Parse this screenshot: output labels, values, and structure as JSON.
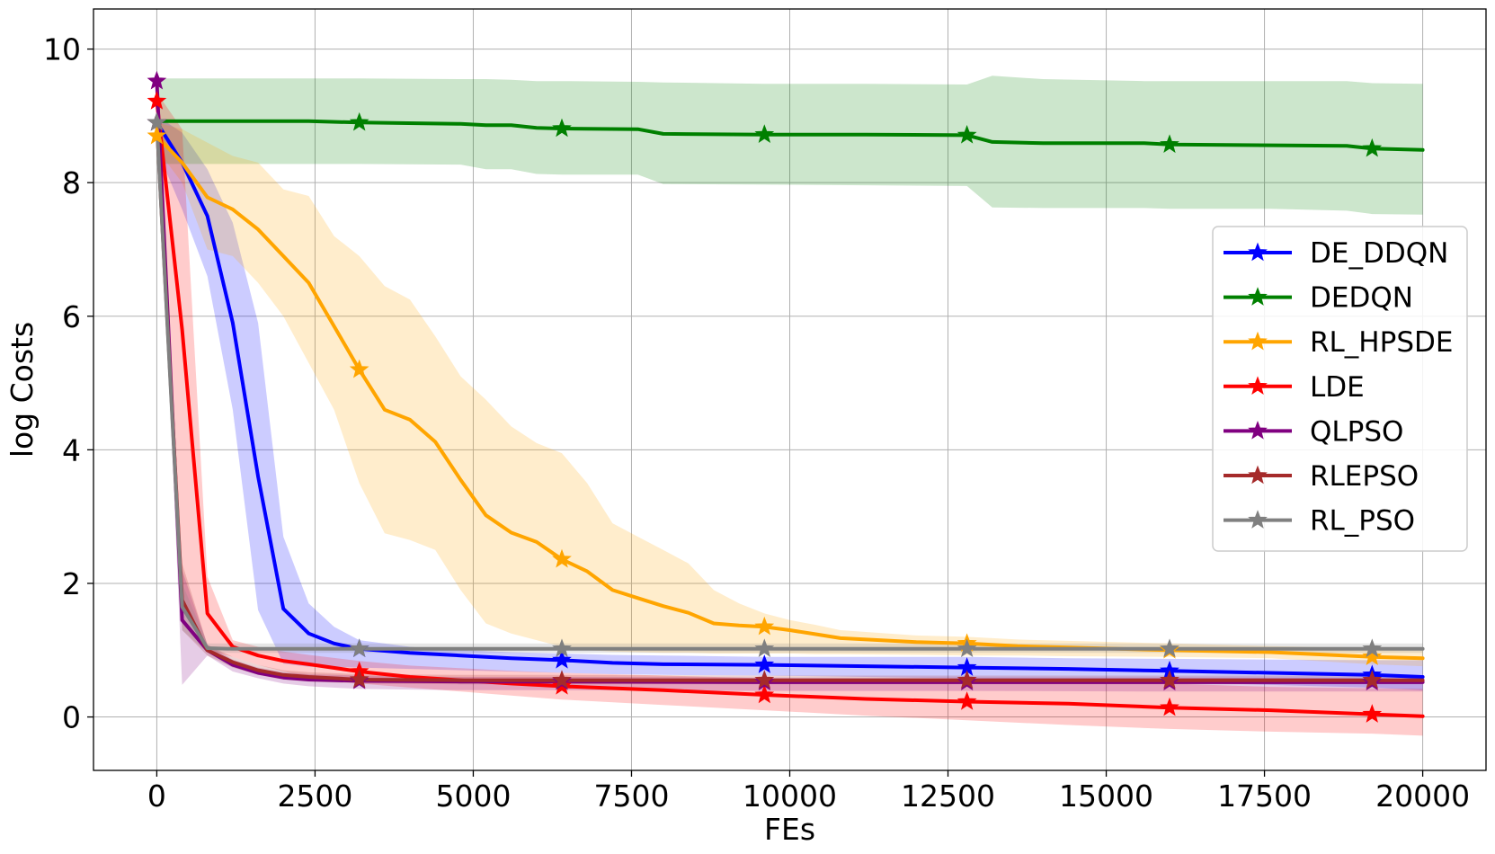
{
  "chart_data": {
    "type": "line",
    "title": "",
    "xlabel": "FEs",
    "ylabel": "log Costs",
    "xlim": [
      -1000,
      21000
    ],
    "ylim": [
      -0.8,
      10.6
    ],
    "xticks": [
      0,
      2500,
      5000,
      7500,
      10000,
      12500,
      15000,
      17500,
      20000
    ],
    "xtick_labels": [
      "0",
      "2500",
      "5000",
      "7500",
      "10000",
      "12500",
      "15000",
      "17500",
      "20000"
    ],
    "yticks": [
      0,
      2,
      4,
      6,
      8,
      10
    ],
    "ytick_labels": [
      "0",
      "2",
      "4",
      "6",
      "8",
      "10"
    ],
    "grid": true,
    "legend_position": "center-right",
    "marker": "star",
    "series": [
      {
        "name": "DE_DDQN",
        "color": "#0000ff",
        "x": [
          0,
          400,
          800,
          1200,
          1600,
          2000,
          2400,
          2800,
          3200,
          4000,
          4800,
          5600,
          6400,
          7200,
          8000,
          9600,
          11200,
          12800,
          14400,
          16000,
          17600,
          19200,
          20000
        ],
        "y": [
          8.9,
          8.3,
          7.5,
          5.9,
          3.6,
          1.62,
          1.25,
          1.1,
          1.02,
          0.96,
          0.92,
          0.88,
          0.85,
          0.81,
          0.79,
          0.78,
          0.76,
          0.74,
          0.72,
          0.69,
          0.66,
          0.63,
          0.6
        ],
        "upper": [
          9.0,
          8.75,
          8.2,
          7.4,
          5.9,
          2.7,
          1.7,
          1.35,
          1.15,
          1.05,
          1.0,
          0.97,
          0.95,
          0.93,
          0.92,
          0.9,
          0.9,
          0.9,
          0.88,
          0.87,
          0.86,
          0.85,
          0.85
        ],
        "lower": [
          8.5,
          7.6,
          6.6,
          4.6,
          1.6,
          0.8,
          0.75,
          0.75,
          0.74,
          0.72,
          0.7,
          0.68,
          0.66,
          0.64,
          0.63,
          0.62,
          0.6,
          0.58,
          0.56,
          0.52,
          0.48,
          0.44,
          0.4
        ],
        "marker_x": [
          0,
          3200,
          6400,
          9600,
          12800,
          16000,
          19200
        ],
        "marker_y": [
          8.9,
          1.02,
          0.85,
          0.78,
          0.74,
          0.69,
          0.63
        ]
      },
      {
        "name": "DEDQN",
        "color": "#008000",
        "x": [
          0,
          2400,
          3200,
          4800,
          5200,
          5600,
          6000,
          6400,
          7600,
          8000,
          9600,
          11200,
          12800,
          13200,
          14000,
          15600,
          16000,
          17600,
          18800,
          19200,
          20000
        ],
        "y": [
          8.92,
          8.92,
          8.9,
          8.88,
          8.86,
          8.86,
          8.82,
          8.81,
          8.8,
          8.73,
          8.72,
          8.72,
          8.71,
          8.61,
          8.59,
          8.59,
          8.57,
          8.56,
          8.55,
          8.51,
          8.49
        ],
        "upper": [
          9.56,
          9.56,
          9.56,
          9.55,
          9.55,
          9.54,
          9.52,
          9.52,
          9.51,
          9.5,
          9.48,
          9.48,
          9.47,
          9.6,
          9.55,
          9.52,
          9.52,
          9.52,
          9.52,
          9.49,
          9.48
        ],
        "lower": [
          8.28,
          8.28,
          8.28,
          8.27,
          8.2,
          8.2,
          8.13,
          8.12,
          8.12,
          7.98,
          7.97,
          7.96,
          7.95,
          7.63,
          7.62,
          7.62,
          7.61,
          7.61,
          7.58,
          7.53,
          7.52
        ],
        "marker_x": [
          3200,
          6400,
          9600,
          12800,
          16000,
          19200
        ],
        "marker_y": [
          8.9,
          8.81,
          8.72,
          8.71,
          8.57,
          8.51
        ]
      },
      {
        "name": "RL_HPSDE",
        "color": "#ffa500",
        "x": [
          0,
          400,
          800,
          1200,
          1600,
          2000,
          2400,
          2800,
          3200,
          3600,
          4000,
          4400,
          4800,
          5200,
          5600,
          6000,
          6400,
          6800,
          7200,
          7600,
          8000,
          8400,
          8800,
          9200,
          9600,
          10000,
          10400,
          10800,
          12000,
          12800,
          13600,
          14400,
          16000,
          17600,
          19200,
          20000
        ],
        "y": [
          8.7,
          8.3,
          7.78,
          7.6,
          7.3,
          6.9,
          6.5,
          5.85,
          5.2,
          4.6,
          4.45,
          4.12,
          3.55,
          3.02,
          2.76,
          2.62,
          2.36,
          2.18,
          1.9,
          1.78,
          1.66,
          1.56,
          1.4,
          1.37,
          1.35,
          1.3,
          1.24,
          1.18,
          1.12,
          1.1,
          1.06,
          1.04,
          1.0,
          0.97,
          0.9,
          0.88
        ],
        "upper": [
          8.9,
          8.8,
          8.6,
          8.4,
          8.3,
          7.9,
          7.8,
          7.2,
          6.9,
          6.45,
          6.25,
          5.7,
          5.1,
          4.75,
          4.35,
          4.1,
          3.95,
          3.5,
          2.9,
          2.7,
          2.5,
          2.3,
          1.9,
          1.7,
          1.55,
          1.45,
          1.38,
          1.3,
          1.22,
          1.2,
          1.16,
          1.14,
          1.1,
          1.06,
          1.03,
          1.02
        ],
        "lower": [
          8.5,
          8.0,
          7.0,
          6.9,
          6.5,
          6.0,
          5.3,
          4.6,
          3.5,
          2.75,
          2.65,
          2.5,
          1.9,
          1.4,
          1.25,
          1.15,
          1.05,
          1.0,
          0.98,
          0.97,
          0.96,
          0.96,
          0.95,
          0.95,
          0.95,
          0.95,
          0.94,
          0.94,
          0.93,
          0.92,
          0.92,
          0.91,
          0.9,
          0.88,
          0.79,
          0.76
        ],
        "marker_x": [
          0,
          3200,
          6400,
          9600,
          12800,
          16000,
          19200
        ],
        "marker_y": [
          8.7,
          5.2,
          2.36,
          1.35,
          1.1,
          1.0,
          0.9
        ]
      },
      {
        "name": "LDE",
        "color": "#ff0000",
        "x": [
          0,
          400,
          800,
          1200,
          1600,
          2000,
          2400,
          3200,
          4000,
          4800,
          5600,
          6400,
          8000,
          9600,
          11200,
          12800,
          14400,
          16000,
          17600,
          19200,
          20000
        ],
        "y": [
          9.22,
          5.8,
          1.55,
          1.05,
          0.92,
          0.84,
          0.79,
          0.68,
          0.6,
          0.55,
          0.5,
          0.46,
          0.4,
          0.33,
          0.27,
          0.23,
          0.2,
          0.14,
          0.1,
          0.04,
          0.01
        ],
        "upper": [
          9.35,
          8.8,
          2.1,
          1.15,
          1.05,
          0.98,
          0.93,
          0.84,
          0.77,
          0.73,
          0.69,
          0.66,
          0.62,
          0.58,
          0.56,
          0.55,
          0.52,
          0.5,
          0.45,
          0.43,
          0.42
        ],
        "lower": [
          9.1,
          1.8,
          1.0,
          0.9,
          0.78,
          0.68,
          0.6,
          0.5,
          0.44,
          0.38,
          0.32,
          0.26,
          0.18,
          0.1,
          0.02,
          -0.05,
          -0.12,
          -0.18,
          -0.22,
          -0.25,
          -0.28
        ],
        "marker_x": [
          0,
          3200,
          6400,
          9600,
          12800,
          16000,
          19200
        ],
        "marker_y": [
          9.22,
          0.68,
          0.46,
          0.33,
          0.23,
          0.14,
          0.04
        ]
      },
      {
        "name": "QLPSO",
        "color": "#800080",
        "x": [
          0,
          400,
          800,
          1200,
          1600,
          2000,
          2400,
          3200,
          4800,
          6400,
          9600,
          12800,
          16000,
          19200,
          20000
        ],
        "y": [
          9.52,
          1.45,
          1.0,
          0.78,
          0.66,
          0.59,
          0.56,
          0.54,
          0.53,
          0.53,
          0.52,
          0.52,
          0.52,
          0.52,
          0.52
        ],
        "upper": [
          9.6,
          2.2,
          1.08,
          0.86,
          0.74,
          0.67,
          0.64,
          0.62,
          0.6,
          0.6,
          0.59,
          0.59,
          0.59,
          0.58,
          0.58
        ],
        "lower": [
          9.44,
          0.48,
          0.92,
          0.68,
          0.58,
          0.5,
          0.46,
          0.42,
          0.4,
          0.4,
          0.39,
          0.39,
          0.38,
          0.38,
          0.38
        ],
        "marker_x": [
          0,
          3200,
          6400,
          9600,
          12800,
          16000,
          19200
        ],
        "marker_y": [
          9.52,
          0.54,
          0.53,
          0.52,
          0.52,
          0.52,
          0.52
        ]
      },
      {
        "name": "RLEPSO",
        "color": "#a52a2a",
        "x": [
          0,
          400,
          800,
          1200,
          1600,
          2000,
          2400,
          3200,
          4800,
          6400,
          9600,
          12800,
          16000,
          19200,
          20000
        ],
        "y": [
          8.9,
          1.75,
          1.0,
          0.82,
          0.7,
          0.63,
          0.6,
          0.56,
          0.55,
          0.55,
          0.55,
          0.55,
          0.55,
          0.55,
          0.55
        ],
        "upper": [
          9.0,
          2.3,
          1.08,
          0.9,
          0.78,
          0.7,
          0.67,
          0.64,
          0.63,
          0.63,
          0.62,
          0.62,
          0.62,
          0.62,
          0.62
        ],
        "lower": [
          8.8,
          1.3,
          0.92,
          0.74,
          0.63,
          0.56,
          0.53,
          0.5,
          0.49,
          0.49,
          0.49,
          0.49,
          0.49,
          0.49,
          0.49
        ],
        "marker_x": [
          0,
          3200,
          6400,
          9600,
          12800,
          16000,
          19200
        ],
        "marker_y": [
          8.9,
          0.56,
          0.55,
          0.55,
          0.55,
          0.55,
          0.55
        ]
      },
      {
        "name": "RL_PSO",
        "color": "#808080",
        "x": [
          0,
          400,
          800,
          1200,
          1600,
          2000,
          2400,
          3200,
          4800,
          6400,
          9600,
          12800,
          16000,
          19200,
          20000
        ],
        "y": [
          8.9,
          1.65,
          1.03,
          1.02,
          1.02,
          1.02,
          1.02,
          1.02,
          1.02,
          1.02,
          1.02,
          1.02,
          1.02,
          1.02,
          1.02
        ],
        "upper": [
          9.0,
          2.0,
          1.1,
          1.1,
          1.1,
          1.1,
          1.1,
          1.1,
          1.1,
          1.1,
          1.1,
          1.1,
          1.1,
          1.1,
          1.1
        ],
        "lower": [
          8.8,
          1.3,
          0.96,
          0.96,
          0.96,
          0.96,
          0.96,
          0.96,
          0.96,
          0.96,
          0.96,
          0.96,
          0.96,
          0.96,
          0.96
        ],
        "marker_x": [
          0,
          3200,
          6400,
          9600,
          12800,
          16000,
          19200
        ],
        "marker_y": [
          8.9,
          1.02,
          1.02,
          1.02,
          1.02,
          1.02,
          1.02
        ]
      }
    ]
  }
}
